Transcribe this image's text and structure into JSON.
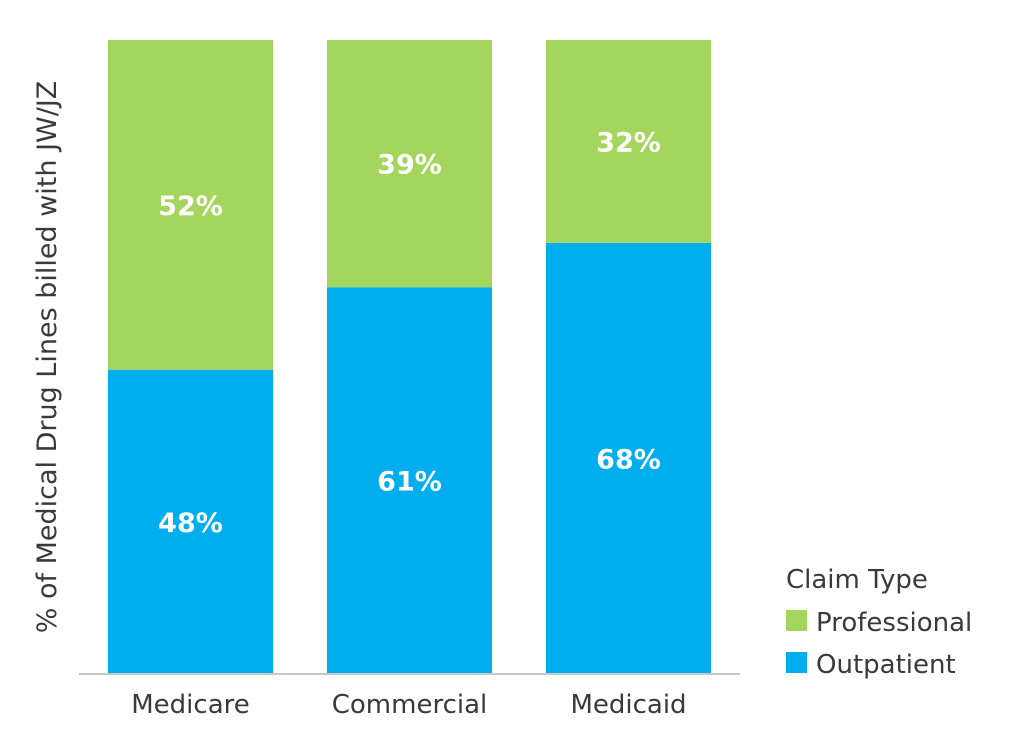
{
  "chart_data": {
    "type": "bar",
    "stacked": true,
    "categories": [
      "Medicare",
      "Commercial",
      "Medicaid"
    ],
    "series": [
      {
        "name": "Outpatient",
        "values": [
          48,
          61,
          68
        ],
        "labels": [
          "48%",
          "61%",
          "68%"
        ],
        "color": "#00aeef"
      },
      {
        "name": "Professional",
        "values": [
          52,
          39,
          32
        ],
        "labels": [
          "52%",
          "39%",
          "32%"
        ],
        "color": "#a4d65e"
      }
    ],
    "title": "",
    "xlabel": "",
    "ylabel": "% of Medical Drug Lines billed with JW/JZ",
    "ylim": [
      0,
      100
    ],
    "grid": false,
    "legend": {
      "title": "Claim Type",
      "placement": "bottom-right",
      "entries": [
        {
          "label": "Professional",
          "color": "#a4d65e"
        },
        {
          "label": "Outpatient",
          "color": "#00aeef"
        }
      ]
    }
  }
}
